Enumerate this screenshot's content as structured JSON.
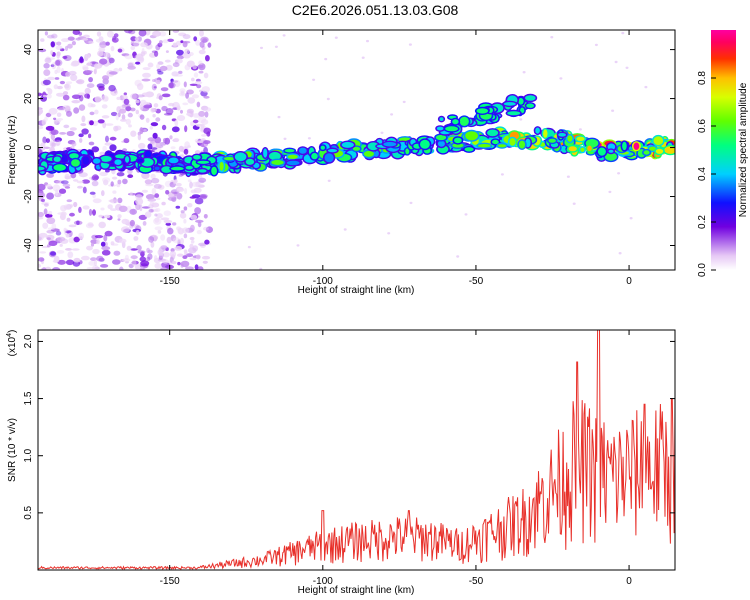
{
  "title": "C2E6.2026.051.13.03.G08",
  "colors": {
    "snr_line": "#e8302a",
    "frame": "#000000"
  },
  "chart_data": [
    {
      "type": "heatmap",
      "xlabel": "Height of straight line (km)",
      "ylabel": "Frequency (Hz)",
      "xlim": [
        -193,
        15
      ],
      "ylim": [
        -50,
        48
      ],
      "xticks": [
        -150,
        -100,
        -50,
        0
      ],
      "yticks": [
        -40,
        -20,
        0,
        20,
        40
      ],
      "noise_region_x": [
        -193,
        -137
      ],
      "ridge": [
        {
          "x": -185,
          "y": -6
        },
        {
          "x": -170,
          "y": -5
        },
        {
          "x": -155,
          "y": -6
        },
        {
          "x": -140,
          "y": -7
        },
        {
          "x": -130,
          "y": -6
        },
        {
          "x": -120,
          "y": -5
        },
        {
          "x": -110,
          "y": -4
        },
        {
          "x": -100,
          "y": -3
        },
        {
          "x": -90,
          "y": -1
        },
        {
          "x": -80,
          "y": 0
        },
        {
          "x": -70,
          "y": 1
        },
        {
          "x": -60,
          "y": 2
        },
        {
          "x": -50,
          "y": 2
        },
        {
          "x": -40,
          "y": 4
        },
        {
          "x": -30,
          "y": 4
        },
        {
          "x": -20,
          "y": 2
        },
        {
          "x": -10,
          "y": -1
        },
        {
          "x": 0,
          "y": -1
        },
        {
          "x": 12,
          "y": 0
        }
      ],
      "secondary_ridge": [
        {
          "x": -60,
          "y": 9
        },
        {
          "x": -50,
          "y": 13
        },
        {
          "x": -40,
          "y": 16
        },
        {
          "x": -32,
          "y": 19
        }
      ],
      "colorbar": {
        "label": "Normalized spectral amplitude",
        "min": 0.0,
        "max": 1.0,
        "ticks": [
          "0.0",
          "0.2",
          "0.4",
          "0.6",
          "0.8"
        ],
        "tick_values": [
          0.0,
          0.2,
          0.4,
          0.6,
          0.8
        ]
      }
    },
    {
      "type": "line",
      "xlabel": "Height of straight line (km)",
      "ylabel": "SNR (10 * v/v)",
      "exponent_label": "(x10",
      "exponent_power": "4",
      "xlim": [
        -193,
        15
      ],
      "ylim": [
        0,
        2.1
      ],
      "xticks": [
        -150,
        -100,
        -50,
        0
      ],
      "yticks": [
        "0.5",
        "1.0",
        "1.5",
        "2.0"
      ],
      "ytick_values": [
        0.5,
        1.0,
        1.5,
        2.0
      ],
      "envelope": [
        {
          "x": -193,
          "y": 0.03
        },
        {
          "x": -140,
          "y": 0.03
        },
        {
          "x": -120,
          "y": 0.12
        },
        {
          "x": -100,
          "y": 0.3
        },
        {
          "x": -90,
          "y": 0.35
        },
        {
          "x": -75,
          "y": 0.4
        },
        {
          "x": -65,
          "y": 0.38
        },
        {
          "x": -55,
          "y": 0.3
        },
        {
          "x": -45,
          "y": 0.45
        },
        {
          "x": -35,
          "y": 0.6
        },
        {
          "x": -25,
          "y": 0.95
        },
        {
          "x": -17,
          "y": 1.3
        },
        {
          "x": -12,
          "y": 1.2
        },
        {
          "x": -5,
          "y": 1.1
        },
        {
          "x": 5,
          "y": 1.2
        },
        {
          "x": 14,
          "y": 1.25
        }
      ],
      "peaks": [
        {
          "x": -100,
          "y": 0.52
        },
        {
          "x": -72,
          "y": 0.52
        },
        {
          "x": -17,
          "y": 1.82
        },
        {
          "x": -10,
          "y": 2.1
        },
        {
          "x": 5,
          "y": 1.45
        },
        {
          "x": 14,
          "y": 1.5
        }
      ]
    }
  ]
}
